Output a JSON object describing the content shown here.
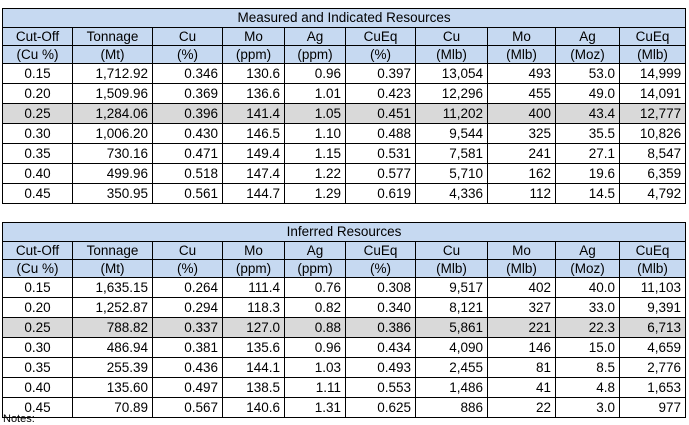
{
  "columns": [
    [
      "Cut-Off",
      "(Cu %)"
    ],
    [
      "Tonnage",
      "(Mt)"
    ],
    [
      "Cu",
      "(%)"
    ],
    [
      "Mo",
      "(ppm)"
    ],
    [
      "Ag",
      "(ppm)"
    ],
    [
      "CuEq",
      "(%)"
    ],
    [
      "Cu",
      "(Mlb)"
    ],
    [
      "Mo",
      "(Mlb)"
    ],
    [
      "Ag",
      "(Moz)"
    ],
    [
      "CuEq",
      "(Mlb)"
    ]
  ],
  "tables": [
    {
      "title": "Measured and Indicated Resources",
      "rows": [
        [
          "0.15",
          "1,712.92",
          "0.346",
          "130.6",
          "0.96",
          "0.397",
          "13,054",
          "493",
          "53.0",
          "14,999"
        ],
        [
          "0.20",
          "1,509.96",
          "0.369",
          "136.6",
          "1.01",
          "0.423",
          "12,296",
          "455",
          "49.0",
          "14,091"
        ],
        [
          "0.25",
          "1,284.06",
          "0.396",
          "141.4",
          "1.05",
          "0.451",
          "11,202",
          "400",
          "43.4",
          "12,777"
        ],
        [
          "0.30",
          "1,006.20",
          "0.430",
          "146.5",
          "1.10",
          "0.488",
          "9,544",
          "325",
          "35.5",
          "10,826"
        ],
        [
          "0.35",
          "730.16",
          "0.471",
          "149.4",
          "1.15",
          "0.531",
          "7,581",
          "241",
          "27.1",
          "8,547"
        ],
        [
          "0.40",
          "499.96",
          "0.518",
          "147.4",
          "1.22",
          "0.577",
          "5,710",
          "162",
          "19.6",
          "6,359"
        ],
        [
          "0.45",
          "350.95",
          "0.561",
          "144.7",
          "1.29",
          "0.619",
          "4,336",
          "112",
          "14.5",
          "4,792"
        ]
      ]
    },
    {
      "title": "Inferred Resources",
      "rows": [
        [
          "0.15",
          "1,635.15",
          "0.264",
          "111.4",
          "0.76",
          "0.308",
          "9,517",
          "402",
          "40.0",
          "11,103"
        ],
        [
          "0.20",
          "1,252.87",
          "0.294",
          "118.3",
          "0.82",
          "0.340",
          "8,121",
          "327",
          "33.0",
          "9,391"
        ],
        [
          "0.25",
          "788.82",
          "0.337",
          "127.0",
          "0.88",
          "0.386",
          "5,861",
          "221",
          "22.3",
          "6,713"
        ],
        [
          "0.30",
          "486.94",
          "0.381",
          "135.6",
          "0.96",
          "0.434",
          "4,090",
          "146",
          "15.0",
          "4,659"
        ],
        [
          "0.35",
          "255.39",
          "0.436",
          "144.1",
          "1.03",
          "0.493",
          "2,455",
          "81",
          "8.5",
          "2,776"
        ],
        [
          "0.40",
          "135.60",
          "0.497",
          "138.5",
          "1.11",
          "0.553",
          "1,486",
          "41",
          "4.8",
          "1,653"
        ],
        [
          "0.45",
          "70.89",
          "0.567",
          "140.6",
          "1.31",
          "0.625",
          "886",
          "22",
          "3.0",
          "977"
        ]
      ]
    }
  ],
  "highlight_color": "#d9d9d9",
  "header_color": "#c6d9f1",
  "note": "Notes:"
}
